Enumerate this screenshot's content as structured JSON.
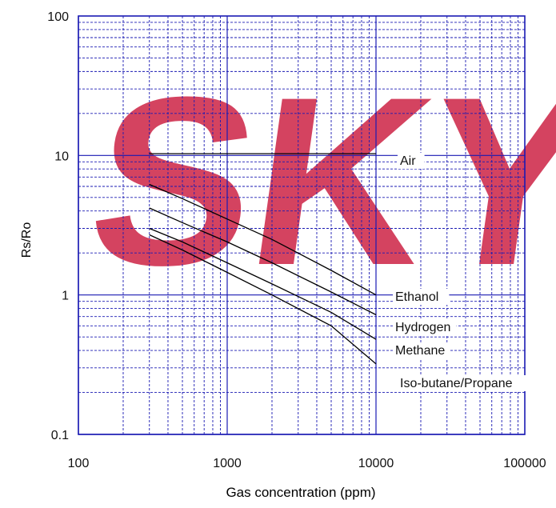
{
  "chart_data": {
    "type": "line",
    "title": "",
    "xlabel": "Gas concentration (ppm)",
    "ylabel": "Rs/Ro",
    "x_scale": "log",
    "y_scale": "log",
    "xlim": [
      100,
      100000
    ],
    "ylim": [
      0.1,
      100
    ],
    "x_ticks": [
      100,
      1000,
      10000,
      100000
    ],
    "x_tick_labels": [
      "100",
      "1000",
      "10000",
      "100000"
    ],
    "y_ticks": [
      0.1,
      1,
      10,
      100
    ],
    "y_tick_labels": [
      "0.1",
      "1",
      "10",
      "100"
    ],
    "grid": true,
    "watermark": "SKY",
    "series": [
      {
        "name": "Air",
        "x": [
          300,
          10000
        ],
        "y": [
          10.3,
          10.3
        ]
      },
      {
        "name": "Ethanol",
        "x": [
          300,
          500,
          1000,
          2000,
          5000,
          10000
        ],
        "y": [
          6.2,
          4.9,
          3.5,
          2.5,
          1.5,
          1.0
        ]
      },
      {
        "name": "Hydrogen",
        "x": [
          300,
          500,
          1000,
          2000,
          5000,
          10000
        ],
        "y": [
          4.2,
          3.3,
          2.4,
          1.7,
          1.05,
          0.72
        ]
      },
      {
        "name": "Methane",
        "x": [
          300,
          500,
          1000,
          2000,
          5000,
          10000
        ],
        "y": [
          3.0,
          2.4,
          1.7,
          1.2,
          0.75,
          0.48
        ]
      },
      {
        "name": "Iso-butane/Propane",
        "x": [
          300,
          500,
          1000,
          2000,
          5000,
          10000
        ],
        "y": [
          2.7,
          2.1,
          1.45,
          1.0,
          0.6,
          0.32
        ]
      }
    ]
  },
  "colors": {
    "grid": "#1a1ab3",
    "frame": "#1a1ab3",
    "series": "#000000",
    "watermark": "#cc2244",
    "text": "#111111"
  }
}
